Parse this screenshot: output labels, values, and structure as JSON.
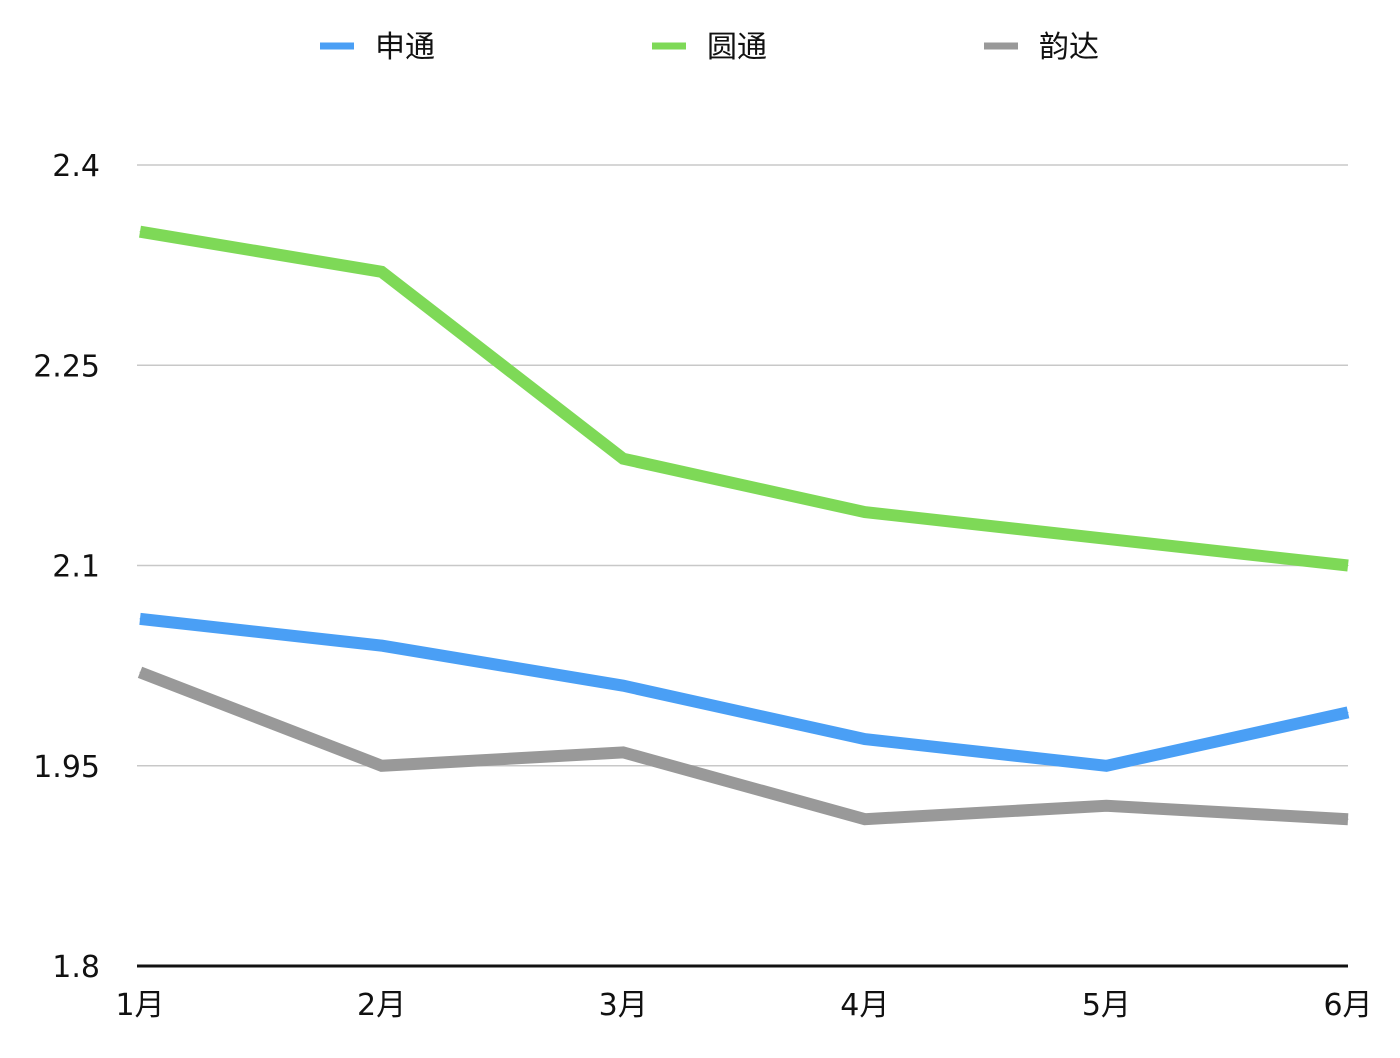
{
  "chart_data": {
    "type": "line",
    "title": "",
    "xlabel": "",
    "ylabel": "",
    "categories": [
      "1月",
      "2月",
      "3月",
      "4月",
      "5月",
      "6月"
    ],
    "y_ticks": [
      "1.8",
      "1.95",
      "2.1",
      "2.25",
      "2.4"
    ],
    "y_tick_values": [
      1.8,
      1.95,
      2.1,
      2.25,
      2.4
    ],
    "ylim": [
      1.8,
      2.4
    ],
    "grid": true,
    "legend_position": "top",
    "series": [
      {
        "name": "申通",
        "color": "#4a9ff5",
        "values": [
          2.06,
          2.04,
          2.01,
          1.97,
          1.95,
          1.99
        ]
      },
      {
        "name": "圆通",
        "color": "#7ed957",
        "values": [
          2.35,
          2.32,
          2.18,
          2.14,
          2.12,
          2.1
        ]
      },
      {
        "name": "韵达",
        "color": "#999999",
        "values": [
          2.02,
          1.95,
          1.96,
          1.91,
          1.92,
          1.91
        ]
      }
    ]
  }
}
